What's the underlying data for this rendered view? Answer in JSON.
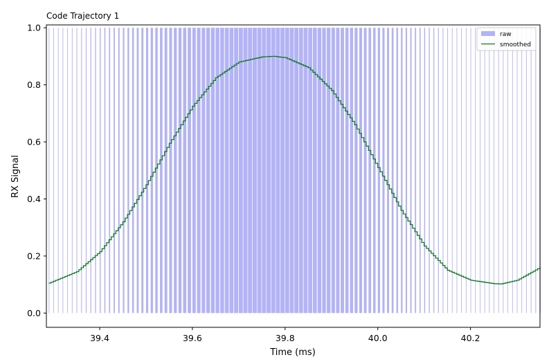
{
  "chart_data": {
    "type": "line",
    "title": "Code Trajectory 1",
    "xlabel": "Time (ms)",
    "ylabel": "RX Signal",
    "xlim": [
      39.285,
      40.35
    ],
    "ylim": [
      -0.05,
      1.01
    ],
    "xticks": [
      39.4,
      39.6,
      39.8,
      40.0,
      40.2
    ],
    "xtick_labels": [
      "39.4",
      "39.6",
      "39.8",
      "40.0",
      "40.2"
    ],
    "yticks": [
      0.0,
      0.2,
      0.4,
      0.6,
      0.8,
      1.0
    ],
    "ytick_labels": [
      "0.0",
      "0.2",
      "0.4",
      "0.6",
      "0.8",
      "1.0"
    ],
    "grid": false,
    "legend": {
      "position": "top-right",
      "entries": [
        "raw",
        "smoothed"
      ]
    },
    "series": [
      {
        "name": "raw",
        "kind": "binary-pulses",
        "color": "#b3b3f7",
        "levels": [
          0,
          1
        ],
        "note_values": "duty cycle follows the smoothed envelope",
        "pulse_period": 0.01,
        "x_start": 39.29,
        "x_end": 40.35
      },
      {
        "name": "smoothed",
        "kind": "line",
        "color": "#137a1e",
        "x": [
          39.29,
          39.35,
          39.4,
          39.45,
          39.5,
          39.55,
          39.6,
          39.65,
          39.7,
          39.75,
          39.775,
          39.8,
          39.85,
          39.9,
          39.95,
          40.0,
          40.05,
          40.1,
          40.15,
          40.2,
          40.25,
          40.265,
          40.3,
          40.35
        ],
        "y": [
          0.105,
          0.145,
          0.215,
          0.32,
          0.45,
          0.595,
          0.725,
          0.825,
          0.88,
          0.898,
          0.9,
          0.895,
          0.86,
          0.78,
          0.66,
          0.51,
          0.36,
          0.235,
          0.15,
          0.115,
          0.103,
          0.102,
          0.115,
          0.16
        ]
      }
    ]
  }
}
